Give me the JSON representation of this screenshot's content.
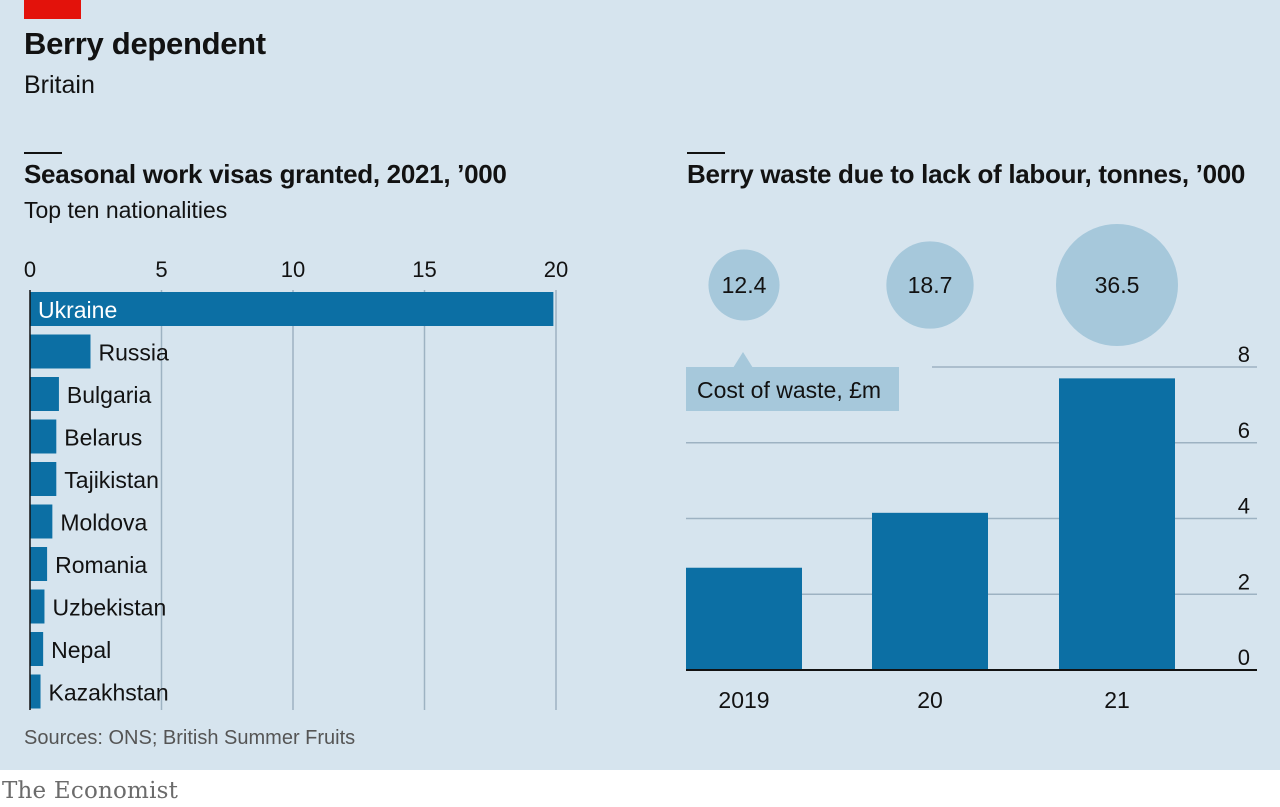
{
  "header": {
    "title": "Berry dependent",
    "subtitle": "Britain"
  },
  "colors": {
    "background": "#d6e4ee",
    "bar": "#0c6fa4",
    "bubble": "#a6c8db",
    "brand_red": "#e3120b"
  },
  "chart_data": [
    {
      "type": "bar",
      "orientation": "horizontal",
      "title": "Seasonal work visas granted, 2021, ’000",
      "subtitle": "Top ten nationalities",
      "categories": [
        "Ukraine",
        "Russia",
        "Bulgaria",
        "Belarus",
        "Tajikistan",
        "Moldova",
        "Romania",
        "Uzbekistan",
        "Nepal",
        "Kazakhstan"
      ],
      "values": [
        19.9,
        2.3,
        1.1,
        1.0,
        1.0,
        0.85,
        0.65,
        0.55,
        0.5,
        0.4
      ],
      "xlim": [
        0,
        20
      ],
      "xticks": [
        0,
        5,
        10,
        15,
        20
      ],
      "grid": true,
      "axis_position": "top"
    },
    {
      "type": "bar",
      "title": "Berry waste due to lack of labour, tonnes, ’000",
      "categories": [
        "2019",
        "20",
        "21"
      ],
      "values": [
        2.7,
        4.15,
        7.7
      ],
      "ylim": [
        0,
        8
      ],
      "yticks": [
        0,
        2,
        4,
        6,
        8
      ],
      "grid": true,
      "axis_position": "right",
      "bubbles": {
        "label": "Cost of waste, £m",
        "values": [
          12.4,
          18.7,
          36.5
        ]
      }
    }
  ],
  "footer": {
    "source": "Sources: ONS; British Summer Fruits",
    "brand": "The Economist"
  }
}
